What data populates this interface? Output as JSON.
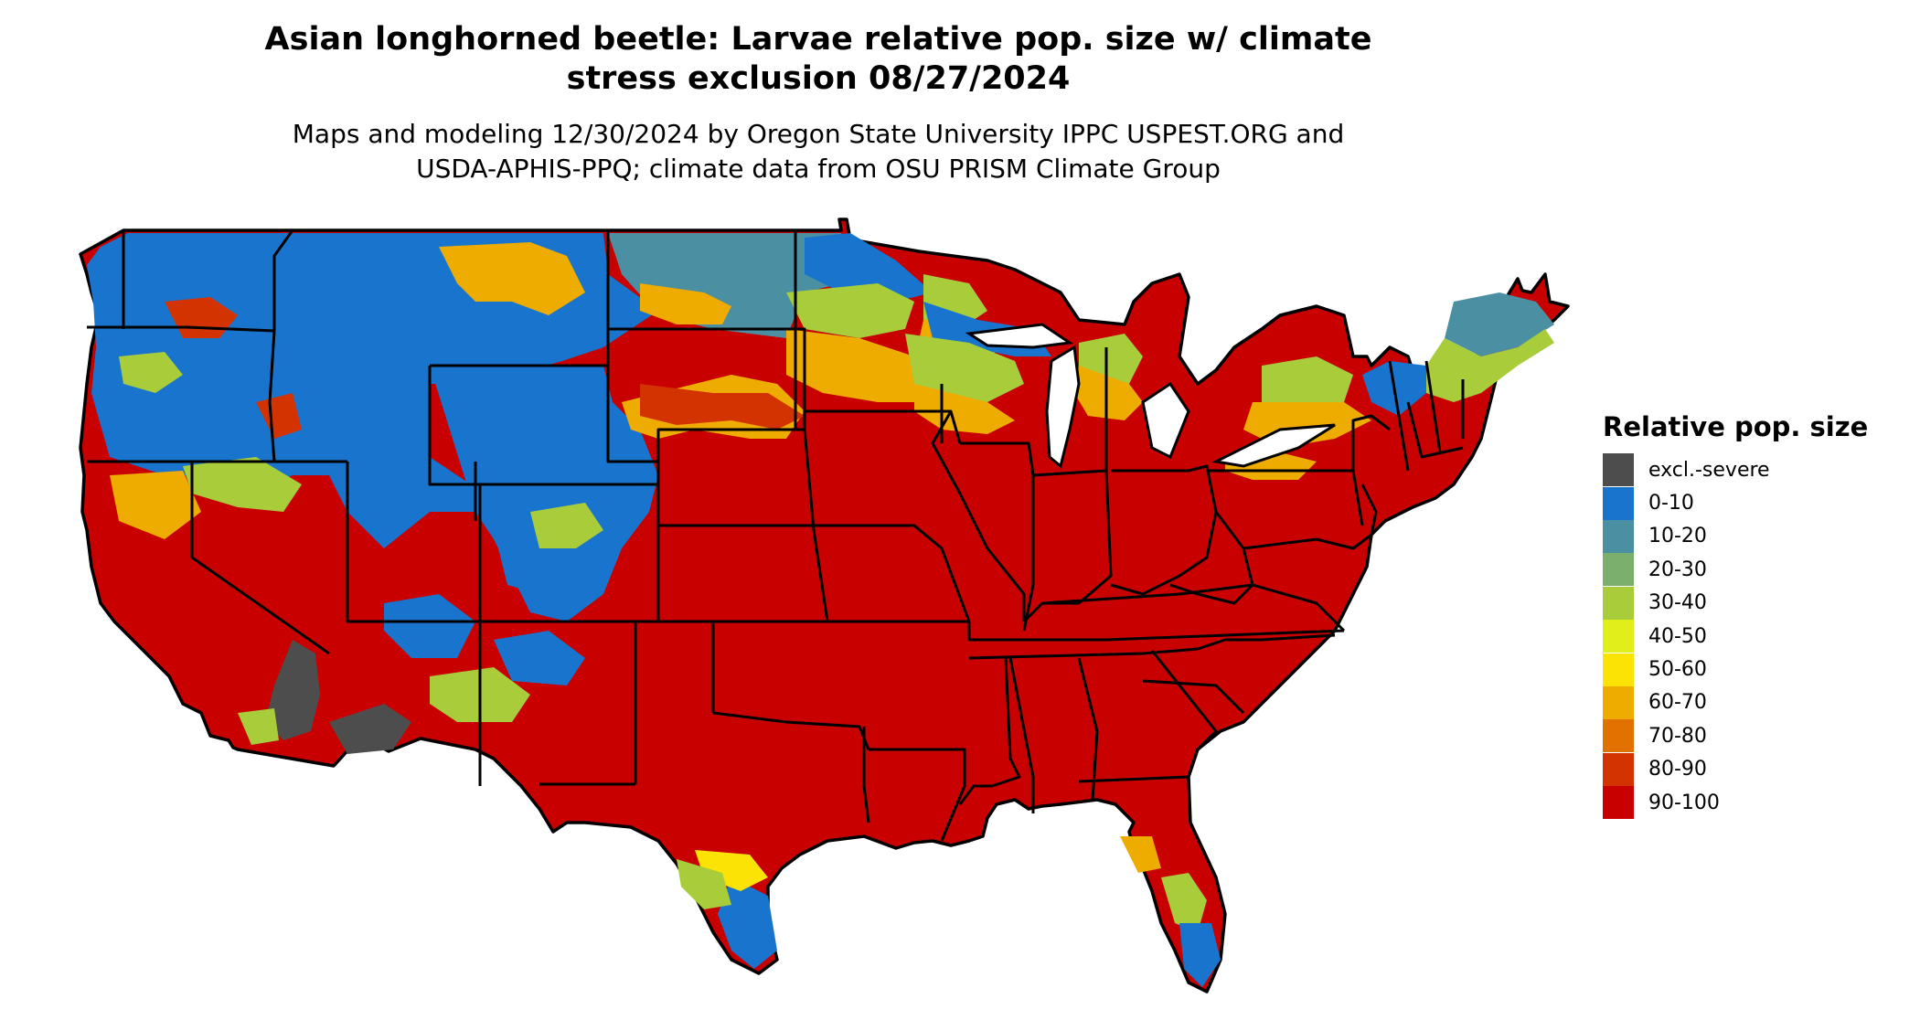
{
  "title_line1": "Asian longhorned beetle: Larvae relative pop. size w/ climate",
  "title_line2": "stress exclusion 08/27/2024",
  "subtitle_line1": "Maps and modeling 12/30/2024 by Oregon State University IPPC USPEST.ORG and",
  "subtitle_line2": "USDA-APHIS-PPQ; climate data from OSU PRISM Climate Group",
  "legend": {
    "title": "Relative pop. size",
    "items": [
      {
        "label": "excl.-severe",
        "color": "#4d4d4d"
      },
      {
        "label": "0-10",
        "color": "#1874cd"
      },
      {
        "label": "10-20",
        "color": "#4b8fa3"
      },
      {
        "label": "20-30",
        "color": "#7aaf6c"
      },
      {
        "label": "30-40",
        "color": "#a8cc3a"
      },
      {
        "label": "40-50",
        "color": "#e0ee1a"
      },
      {
        "label": "50-60",
        "color": "#fce306"
      },
      {
        "label": "60-70",
        "color": "#eeab00"
      },
      {
        "label": "70-80",
        "color": "#e27200"
      },
      {
        "label": "80-90",
        "color": "#d33300"
      },
      {
        "label": "90-100",
        "color": "#c80000"
      }
    ]
  }
}
